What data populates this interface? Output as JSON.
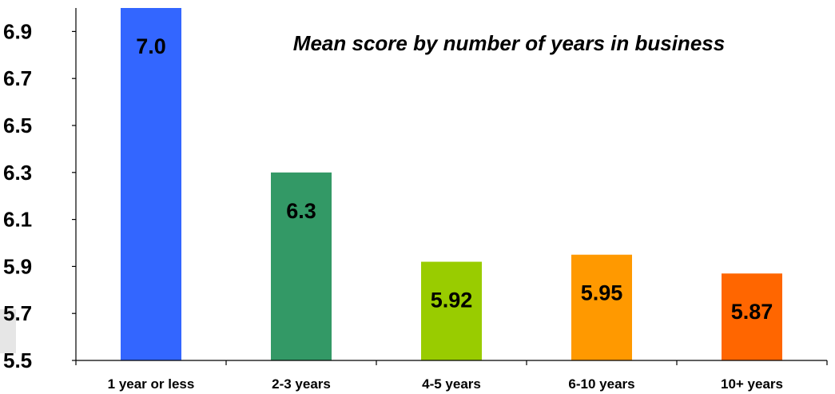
{
  "chart_data": {
    "type": "bar",
    "title": "Mean score by number of years in business",
    "xlabel": "",
    "ylabel": "",
    "categories": [
      "1 year or less",
      "2-3 years",
      "4-5 years",
      "6-10 years",
      "10+ years"
    ],
    "values": [
      7.0,
      6.3,
      5.92,
      5.95,
      5.87
    ],
    "value_labels": [
      "7.0",
      "6.3",
      "5.92",
      "5.95",
      "5.87"
    ],
    "colors": [
      "#3366ff",
      "#339966",
      "#99cc00",
      "#ff9900",
      "#ff6600"
    ],
    "ylim": [
      5.5,
      7.0
    ],
    "yticks": [
      5.5,
      5.7,
      5.9,
      6.1,
      6.3,
      6.5,
      6.7,
      6.9
    ],
    "ytick_labels": [
      "5.5",
      "5.7",
      "5.9",
      "6.1",
      "6.3",
      "6.5",
      "6.7",
      "6.9"
    ],
    "grid": false,
    "legend": "none"
  }
}
